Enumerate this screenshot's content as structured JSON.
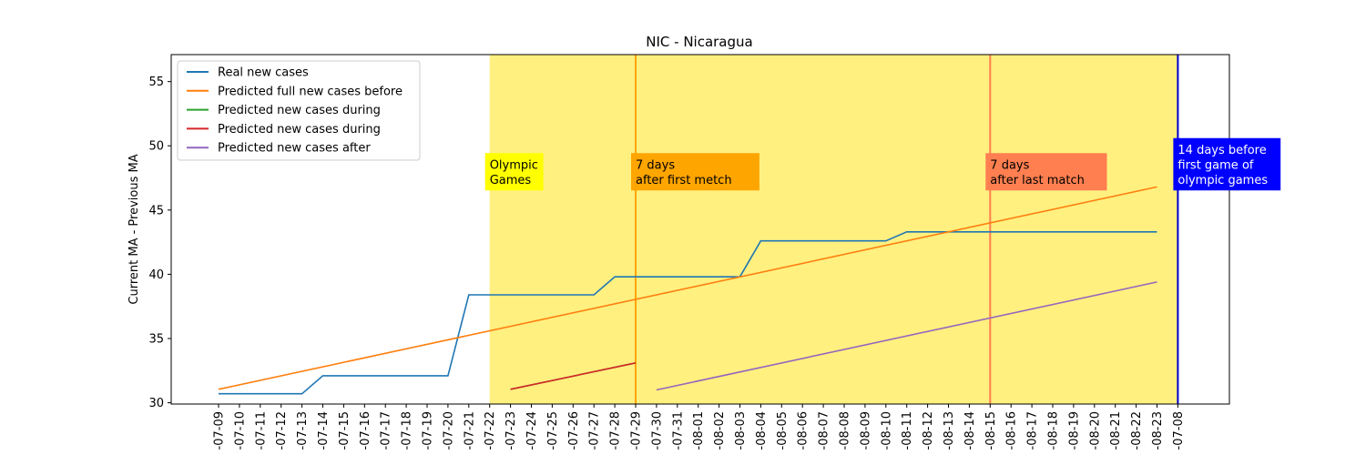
{
  "chart_data": {
    "type": "line",
    "title": "NIC - Nicaragua",
    "xlabel": "",
    "ylabel": "Current MA - Previous MA",
    "ylim": [
      29.9,
      57.1
    ],
    "yticks": [
      30,
      35,
      40,
      45,
      50,
      55
    ],
    "ytick_labels": [
      "30",
      "35",
      "40",
      "45",
      "50",
      "55"
    ],
    "categories": [
      "2021-07-09",
      "2021-07-10",
      "2021-07-11",
      "2021-07-12",
      "2021-07-13",
      "2021-07-14",
      "2021-07-15",
      "2021-07-16",
      "2021-07-17",
      "2021-07-18",
      "2021-07-19",
      "2021-07-20",
      "2021-07-21",
      "2021-07-22",
      "2021-07-23",
      "2021-07-24",
      "2021-07-25",
      "2021-07-26",
      "2021-07-27",
      "2021-07-28",
      "2021-07-29",
      "2021-07-30",
      "2021-07-31",
      "2021-08-01",
      "2021-08-02",
      "2021-08-03",
      "2021-08-04",
      "2021-08-05",
      "2021-08-06",
      "2021-08-07",
      "2021-08-08",
      "2021-08-09",
      "2021-08-10",
      "2021-08-11",
      "2021-08-12",
      "2021-08-13",
      "2021-08-14",
      "2021-08-15",
      "2021-08-16",
      "2021-08-17",
      "2021-08-18",
      "2021-08-19",
      "2021-08-20",
      "2021-08-21",
      "2021-08-22",
      "2021-08-23",
      "2021-07-08"
    ],
    "tick_labels": [
      "-07-09",
      "-07-10",
      "-07-11",
      "-07-12",
      "-07-13",
      "-07-14",
      "-07-15",
      "-07-16",
      "-07-17",
      "-07-18",
      "-07-19",
      "-07-20",
      "-07-21",
      "-07-22",
      "-07-23",
      "-07-24",
      "-07-25",
      "-07-26",
      "-07-27",
      "-07-28",
      "-07-29",
      "-07-30",
      "-07-31",
      "-08-01",
      "-08-02",
      "-08-03",
      "-08-04",
      "-08-05",
      "-08-06",
      "-08-07",
      "-08-08",
      "-08-09",
      "-08-10",
      "-08-11",
      "-08-12",
      "-08-13",
      "-08-14",
      "-08-15",
      "-08-16",
      "-08-17",
      "-08-18",
      "-08-19",
      "-08-20",
      "-08-21",
      "-08-22",
      "-08-23",
      "-07-08"
    ],
    "series": [
      {
        "name": "Real new cases",
        "color": "#1f77b4",
        "x": [
          "2021-07-09",
          "2021-07-10",
          "2021-07-11",
          "2021-07-12",
          "2021-07-13",
          "2021-07-14",
          "2021-07-15",
          "2021-07-16",
          "2021-07-17",
          "2021-07-18",
          "2021-07-19",
          "2021-07-20",
          "2021-07-21",
          "2021-07-22",
          "2021-07-23",
          "2021-07-24",
          "2021-07-25",
          "2021-07-26",
          "2021-07-27",
          "2021-07-28",
          "2021-07-29",
          "2021-07-30",
          "2021-07-31",
          "2021-08-01",
          "2021-08-02",
          "2021-08-03",
          "2021-08-04",
          "2021-08-05",
          "2021-08-06",
          "2021-08-07",
          "2021-08-08",
          "2021-08-09",
          "2021-08-10",
          "2021-08-11",
          "2021-08-12",
          "2021-08-13",
          "2021-08-14",
          "2021-08-15",
          "2021-08-16",
          "2021-08-17",
          "2021-08-18",
          "2021-08-19",
          "2021-08-20",
          "2021-08-21",
          "2021-08-22",
          "2021-08-23"
        ],
        "values": [
          30.7,
          30.7,
          30.7,
          30.7,
          30.7,
          32.1,
          32.1,
          32.1,
          32.1,
          32.1,
          32.1,
          32.1,
          38.4,
          38.4,
          38.4,
          38.4,
          38.4,
          38.4,
          38.4,
          39.8,
          39.8,
          39.8,
          39.8,
          39.8,
          39.8,
          39.8,
          42.6,
          42.6,
          42.6,
          42.6,
          42.6,
          42.6,
          42.6,
          43.3,
          43.3,
          43.3,
          43.3,
          43.3,
          43.3,
          43.3,
          43.3,
          43.3,
          43.3,
          43.3,
          43.3,
          43.3
        ]
      },
      {
        "name": "Predicted full new cases before",
        "color": "#ff7f0e",
        "x": [
          "2021-07-09",
          "2021-08-23"
        ],
        "values": [
          31.05,
          46.8
        ]
      },
      {
        "name": "Predicted new cases during",
        "color": "#2ca02c",
        "x": [
          "2021-07-23",
          "2021-07-29"
        ],
        "values": [
          31.05,
          33.1
        ]
      },
      {
        "name": "Predicted new cases during",
        "color": "#d62728",
        "x": [
          "2021-07-23",
          "2021-07-29"
        ],
        "values": [
          31.05,
          33.1
        ]
      },
      {
        "name": "Predicted new cases after",
        "color": "#9467bd",
        "x": [
          "2021-07-30",
          "2021-08-23"
        ],
        "values": [
          31.0,
          39.4
        ]
      }
    ],
    "shaded_region": {
      "from": "2021-07-22",
      "to": "2021-07-08",
      "color": "#fff080"
    },
    "vertical_lines": [
      {
        "x": "2021-07-29",
        "color": "#ffa500"
      },
      {
        "x": "2021-08-15",
        "color": "#ff7f50"
      },
      {
        "x": "2021-07-08",
        "color": "#0000cd"
      }
    ],
    "annotations": [
      {
        "x": "2021-07-22",
        "y": 48.9,
        "lines": [
          "Olympic",
          "Games"
        ],
        "bg": "#ffff00",
        "color": "#000000"
      },
      {
        "x": "2021-07-29",
        "y": 48.9,
        "lines": [
          "7 days",
          "after first metch"
        ],
        "bg": "#ffa500",
        "color": "#000000"
      },
      {
        "x": "2021-08-15",
        "y": 48.9,
        "lines": [
          "7 days",
          "after last match"
        ],
        "bg": "#ff7f50",
        "color": "#000000"
      },
      {
        "x": "2021-07-08",
        "y": 48.9,
        "lines": [
          "14 days before",
          "first game of",
          "olympic games"
        ],
        "bg": "#0000ff",
        "color": "#ffffff"
      }
    ],
    "legend": {
      "placement": "top-left",
      "items": [
        {
          "label": "Real new cases",
          "color": "#1f77b4"
        },
        {
          "label": "Predicted full new cases before",
          "color": "#ff7f0e"
        },
        {
          "label": "Predicted new cases during",
          "color": "#2ca02c"
        },
        {
          "label": "Predicted new cases during",
          "color": "#d62728"
        },
        {
          "label": "Predicted new cases after",
          "color": "#9467bd"
        }
      ]
    },
    "grid": false
  }
}
